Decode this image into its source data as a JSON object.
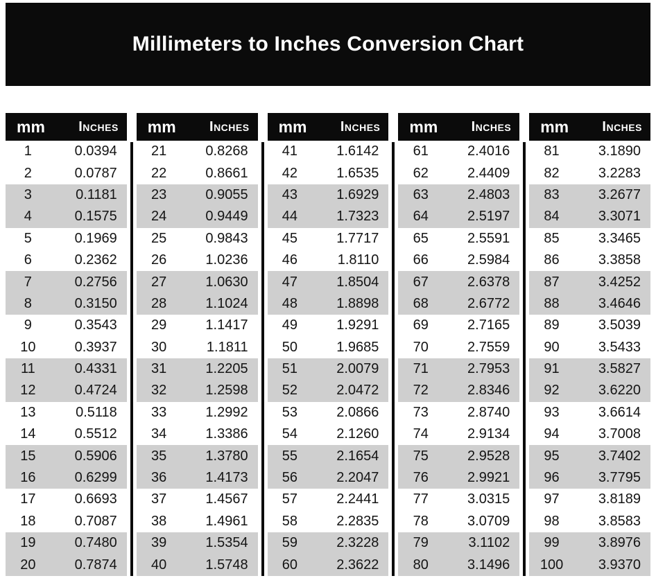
{
  "title": "Millimeters to Inches Conversion Chart",
  "colors": {
    "header_bg": "#0b0b0b",
    "header_text": "#ffffff",
    "stripe": "#cfcfcf",
    "body_text": "#141414",
    "page_bg": "#ffffff"
  },
  "table": {
    "col_headers": {
      "mm": "mm",
      "inches": "Inches"
    },
    "groups": [
      {
        "rows": [
          [
            "1",
            "0.0394"
          ],
          [
            "2",
            "0.0787"
          ],
          [
            "3",
            "0.1181"
          ],
          [
            "4",
            "0.1575"
          ],
          [
            "5",
            "0.1969"
          ],
          [
            "6",
            "0.2362"
          ],
          [
            "7",
            "0.2756"
          ],
          [
            "8",
            "0.3150"
          ],
          [
            "9",
            "0.3543"
          ],
          [
            "10",
            "0.3937"
          ],
          [
            "11",
            "0.4331"
          ],
          [
            "12",
            "0.4724"
          ],
          [
            "13",
            "0.5118"
          ],
          [
            "14",
            "0.5512"
          ],
          [
            "15",
            "0.5906"
          ],
          [
            "16",
            "0.6299"
          ],
          [
            "17",
            "0.6693"
          ],
          [
            "18",
            "0.7087"
          ],
          [
            "19",
            "0.7480"
          ],
          [
            "20",
            "0.7874"
          ]
        ]
      },
      {
        "rows": [
          [
            "21",
            "0.8268"
          ],
          [
            "22",
            "0.8661"
          ],
          [
            "23",
            "0.9055"
          ],
          [
            "24",
            "0.9449"
          ],
          [
            "25",
            "0.9843"
          ],
          [
            "26",
            "1.0236"
          ],
          [
            "27",
            "1.0630"
          ],
          [
            "28",
            "1.1024"
          ],
          [
            "29",
            "1.1417"
          ],
          [
            "30",
            "1.1811"
          ],
          [
            "31",
            "1.2205"
          ],
          [
            "32",
            "1.2598"
          ],
          [
            "33",
            "1.2992"
          ],
          [
            "34",
            "1.3386"
          ],
          [
            "35",
            "1.3780"
          ],
          [
            "36",
            "1.4173"
          ],
          [
            "37",
            "1.4567"
          ],
          [
            "38",
            "1.4961"
          ],
          [
            "39",
            "1.5354"
          ],
          [
            "40",
            "1.5748"
          ]
        ]
      },
      {
        "rows": [
          [
            "41",
            "1.6142"
          ],
          [
            "42",
            "1.6535"
          ],
          [
            "43",
            "1.6929"
          ],
          [
            "44",
            "1.7323"
          ],
          [
            "45",
            "1.7717"
          ],
          [
            "46",
            "1.8110"
          ],
          [
            "47",
            "1.8504"
          ],
          [
            "48",
            "1.8898"
          ],
          [
            "49",
            "1.9291"
          ],
          [
            "50",
            "1.9685"
          ],
          [
            "51",
            "2.0079"
          ],
          [
            "52",
            "2.0472"
          ],
          [
            "53",
            "2.0866"
          ],
          [
            "54",
            "2.1260"
          ],
          [
            "55",
            "2.1654"
          ],
          [
            "56",
            "2.2047"
          ],
          [
            "57",
            "2.2441"
          ],
          [
            "58",
            "2.2835"
          ],
          [
            "59",
            "2.3228"
          ],
          [
            "60",
            "2.3622"
          ]
        ]
      },
      {
        "rows": [
          [
            "61",
            "2.4016"
          ],
          [
            "62",
            "2.4409"
          ],
          [
            "63",
            "2.4803"
          ],
          [
            "64",
            "2.5197"
          ],
          [
            "65",
            "2.5591"
          ],
          [
            "66",
            "2.5984"
          ],
          [
            "67",
            "2.6378"
          ],
          [
            "68",
            "2.6772"
          ],
          [
            "69",
            "2.7165"
          ],
          [
            "70",
            "2.7559"
          ],
          [
            "71",
            "2.7953"
          ],
          [
            "72",
            "2.8346"
          ],
          [
            "73",
            "2.8740"
          ],
          [
            "74",
            "2.9134"
          ],
          [
            "75",
            "2.9528"
          ],
          [
            "76",
            "2.9921"
          ],
          [
            "77",
            "3.0315"
          ],
          [
            "78",
            "3.0709"
          ],
          [
            "79",
            "3.1102"
          ],
          [
            "80",
            "3.1496"
          ]
        ]
      },
      {
        "rows": [
          [
            "81",
            "3.1890"
          ],
          [
            "82",
            "3.2283"
          ],
          [
            "83",
            "3.2677"
          ],
          [
            "84",
            "3.3071"
          ],
          [
            "85",
            "3.3465"
          ],
          [
            "86",
            "3.3858"
          ],
          [
            "87",
            "3.4252"
          ],
          [
            "88",
            "3.4646"
          ],
          [
            "89",
            "3.5039"
          ],
          [
            "90",
            "3.5433"
          ],
          [
            "91",
            "3.5827"
          ],
          [
            "92",
            "3.6220"
          ],
          [
            "93",
            "3.6614"
          ],
          [
            "94",
            "3.7008"
          ],
          [
            "95",
            "3.7402"
          ],
          [
            "96",
            "3.7795"
          ],
          [
            "97",
            "3.8189"
          ],
          [
            "98",
            "3.8583"
          ],
          [
            "99",
            "3.8976"
          ],
          [
            "100",
            "3.9370"
          ]
        ]
      }
    ]
  }
}
